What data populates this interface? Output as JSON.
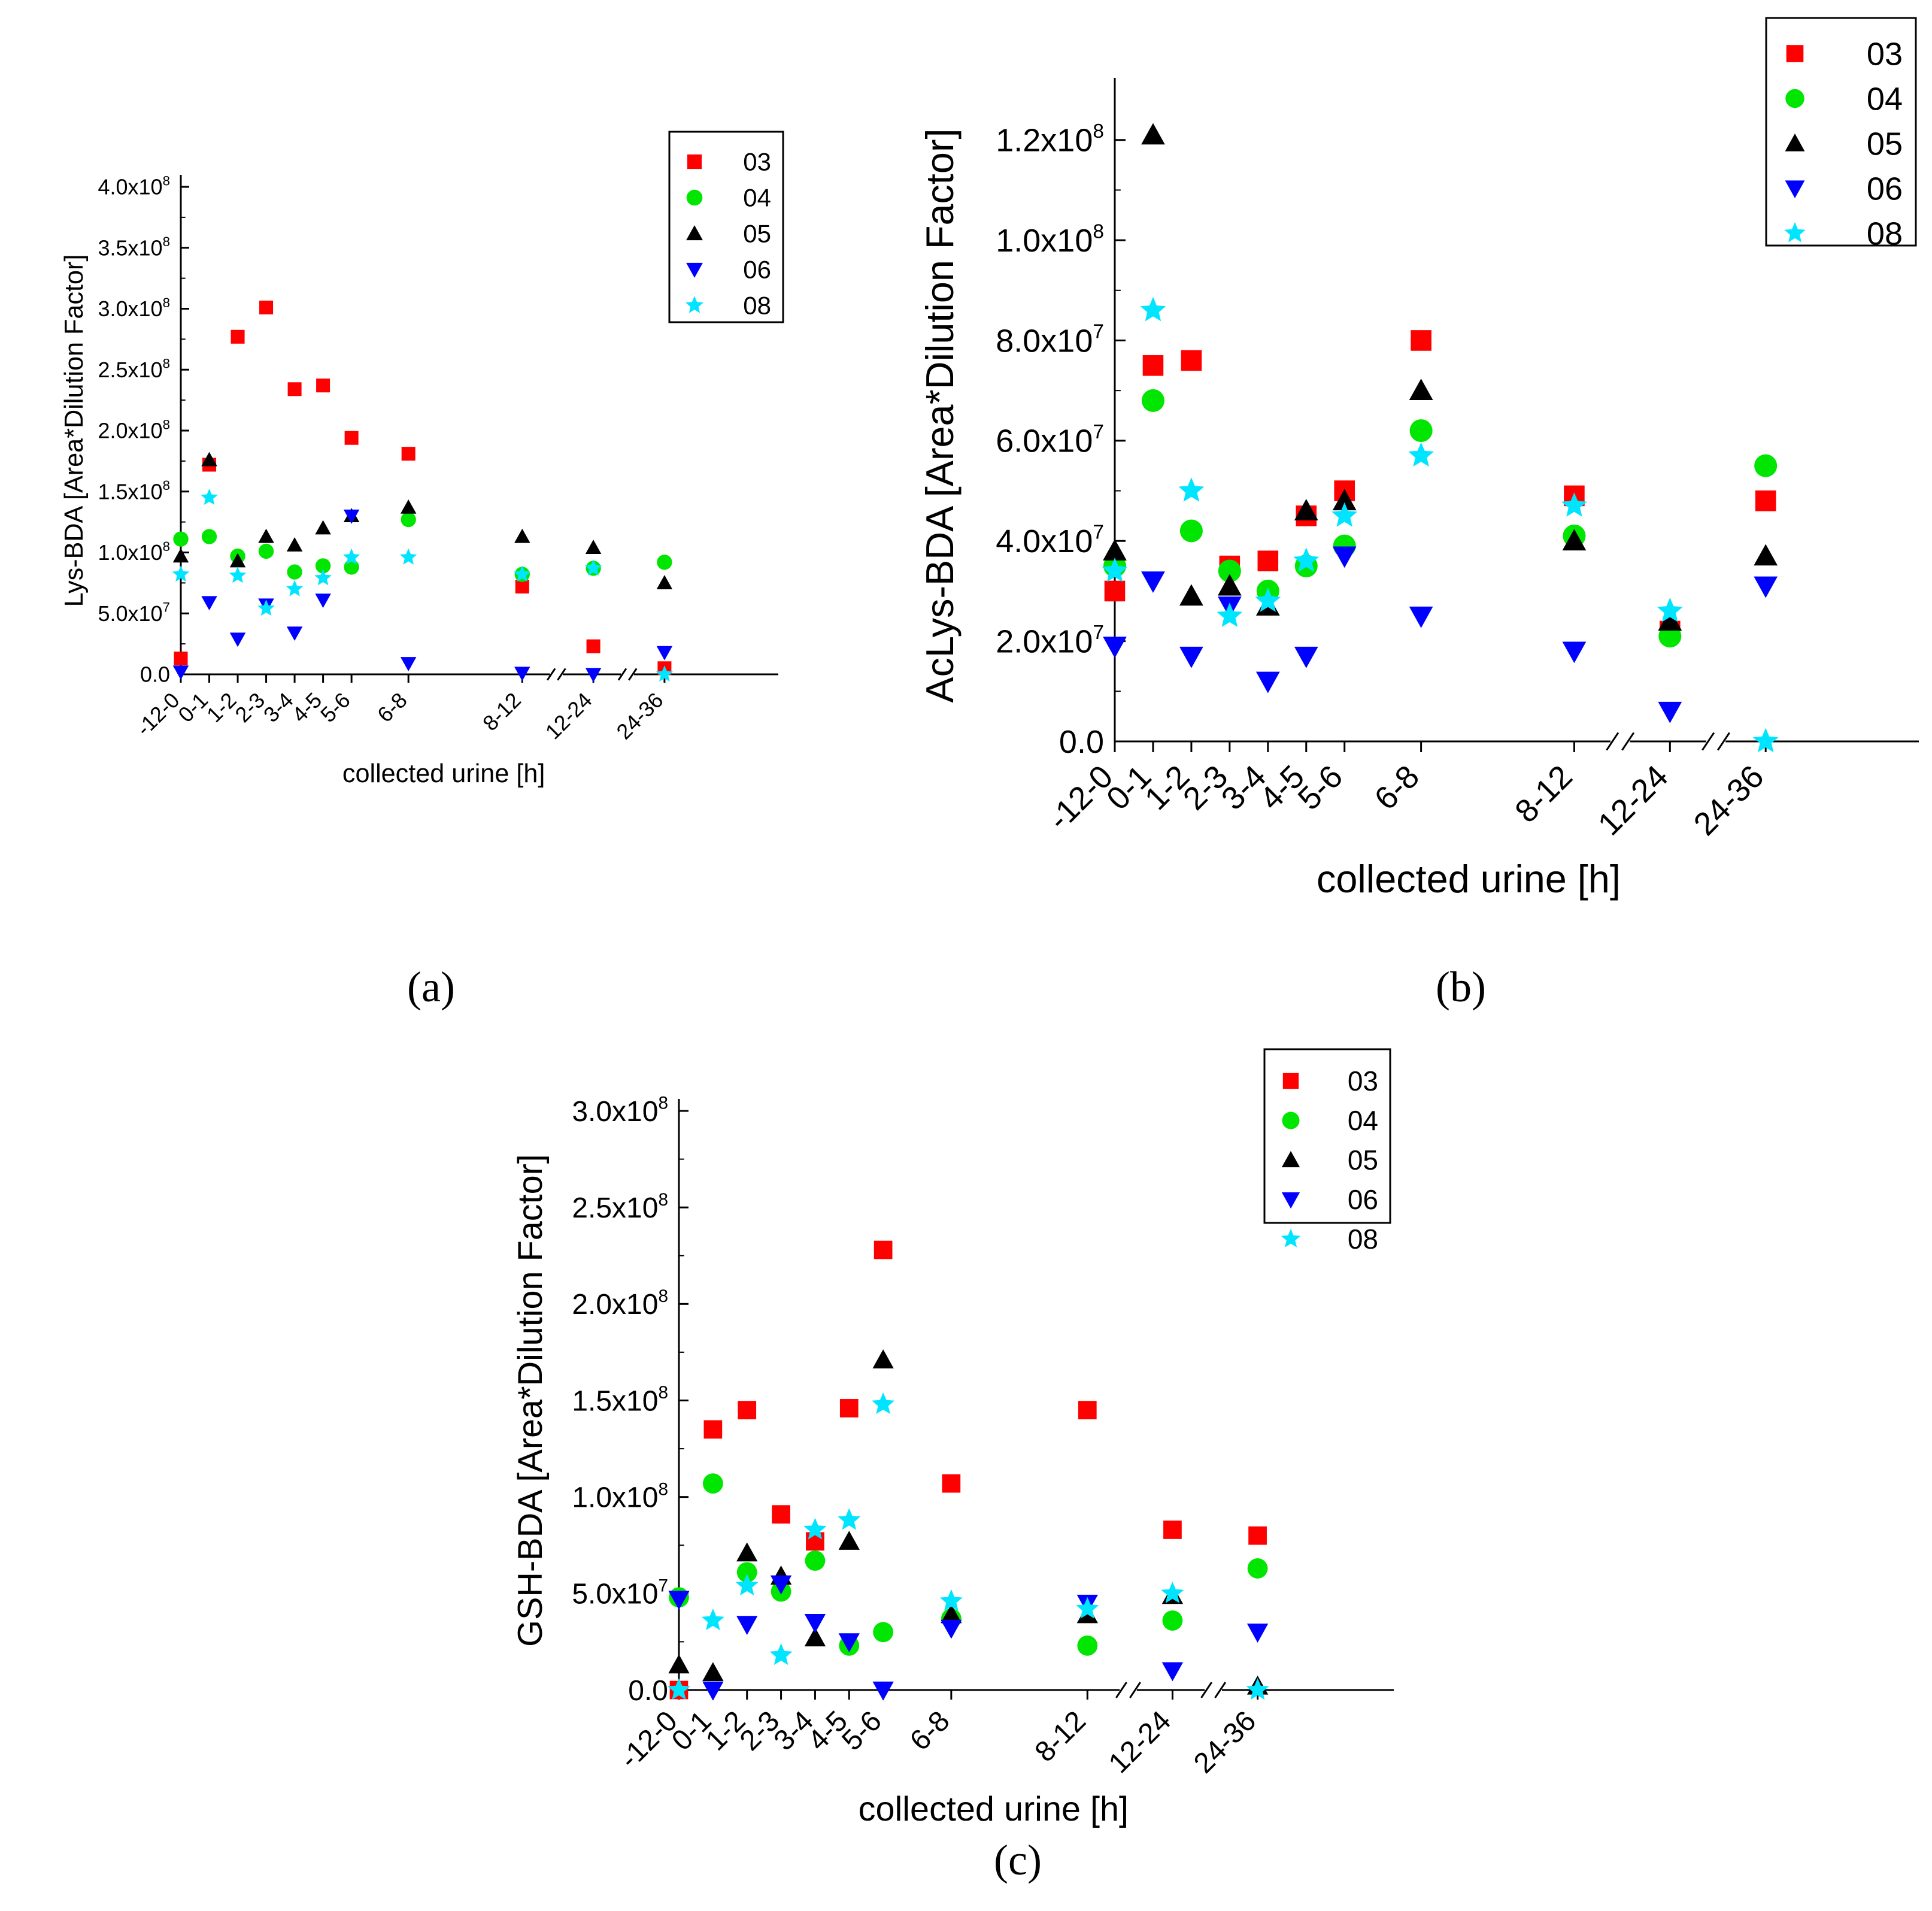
{
  "figure": {
    "panel_labels": [
      "(a)",
      "(b)",
      "(c)"
    ]
  },
  "series_style": [
    {
      "name": "03",
      "color": "#ff0000",
      "marker": "square"
    },
    {
      "name": "04",
      "color": "#00e600",
      "marker": "circle"
    },
    {
      "name": "05",
      "color": "#000000",
      "marker": "triangle-up"
    },
    {
      "name": "06",
      "color": "#0000ff",
      "marker": "triangle-down"
    },
    {
      "name": "08",
      "color": "#00e5ff",
      "marker": "star"
    }
  ],
  "chart_data": [
    {
      "id": "a",
      "type": "scatter",
      "panel_label": "(a)",
      "xlabel": "collected urine [h]",
      "ylabel": "Lys-BDA [Area*Dilution Factor]",
      "categories": [
        "-12-0",
        "0-1",
        "1-2",
        "2-3",
        "3-4",
        "4-5",
        "5-6",
        "6-8",
        "8-12",
        "12-24",
        "24-36"
      ],
      "x_positions": [
        0,
        1,
        2,
        3,
        4,
        5,
        6,
        8,
        12,
        14.5,
        17
      ],
      "xlim": [
        0,
        21
      ],
      "breaks": [
        13.2,
        15.7
      ],
      "ylim": [
        0,
        400000000
      ],
      "yticks": [
        0,
        50000000,
        100000000,
        150000000,
        200000000,
        250000000,
        300000000,
        350000000,
        400000000
      ],
      "ytick_labels": [
        {
          "mant": "0.0",
          "exp": ""
        },
        {
          "mant": "5.0x10",
          "exp": "7"
        },
        {
          "mant": "1.0x10",
          "exp": "8"
        },
        {
          "mant": "1.5x10",
          "exp": "8"
        },
        {
          "mant": "2.0x10",
          "exp": "8"
        },
        {
          "mant": "2.5x10",
          "exp": "8"
        },
        {
          "mant": "3.0x10",
          "exp": "8"
        },
        {
          "mant": "3.5x10",
          "exp": "8"
        },
        {
          "mant": "4.0x10",
          "exp": "8"
        }
      ],
      "legend": [
        "03",
        "04",
        "05",
        "06",
        "08"
      ],
      "series": [
        {
          "name": "03",
          "values": [
            13000000,
            172000000,
            277000000,
            301000000,
            234000000,
            237000000,
            194000000,
            181000000,
            72000000,
            23000000,
            5000000
          ]
        },
        {
          "name": "04",
          "values": [
            111000000,
            113000000,
            97000000,
            101000000,
            84000000,
            89000000,
            88000000,
            127000000,
            82000000,
            87000000,
            92000000
          ]
        },
        {
          "name": "05",
          "values": [
            97000000,
            176000000,
            93000000,
            113000000,
            106000000,
            120000000,
            130000000,
            137000000,
            113000000,
            104000000,
            75000000
          ]
        },
        {
          "name": "06",
          "values": [
            2000000,
            59000000,
            29000000,
            57000000,
            34000000,
            61000000,
            130000000,
            9000000,
            1000000,
            0,
            18000000
          ]
        },
        {
          "name": "08",
          "values": [
            82000000,
            145000000,
            81000000,
            54000000,
            70000000,
            79000000,
            96000000,
            96000000,
            82000000,
            87000000,
            0
          ]
        }
      ]
    },
    {
      "id": "b",
      "type": "scatter",
      "panel_label": "(b)",
      "xlabel": "collected urine [h]",
      "ylabel": "AcLys-BDA [Area*Dilution Factor]",
      "categories": [
        "-12-0",
        "0-1",
        "1-2",
        "2-3",
        "3-4",
        "4-5",
        "5-6",
        "6-8",
        "8-12",
        "12-24",
        "24-36"
      ],
      "x_positions": [
        0,
        1,
        2,
        3,
        4,
        5,
        6,
        8,
        12,
        14.5,
        17
      ],
      "xlim": [
        0,
        21
      ],
      "breaks": [
        13.2,
        15.7
      ],
      "ylim": [
        0,
        130000000
      ],
      "yticks": [
        0,
        20000000,
        40000000,
        60000000,
        80000000,
        100000000,
        120000000
      ],
      "ytick_labels": [
        {
          "mant": "0.0",
          "exp": ""
        },
        {
          "mant": "2.0x10",
          "exp": "7"
        },
        {
          "mant": "4.0x10",
          "exp": "7"
        },
        {
          "mant": "6.0x10",
          "exp": "7"
        },
        {
          "mant": "8.0x10",
          "exp": "7"
        },
        {
          "mant": "1.0x10",
          "exp": "8"
        },
        {
          "mant": "1.2x10",
          "exp": "8"
        }
      ],
      "legend": [
        "03",
        "04",
        "05",
        "06",
        "08"
      ],
      "series": [
        {
          "name": "03",
          "values": [
            30000000,
            75000000,
            76000000,
            35000000,
            36000000,
            45000000,
            50000000,
            80000000,
            49000000,
            22000000,
            48000000
          ]
        },
        {
          "name": "04",
          "values": [
            35000000,
            68000000,
            42000000,
            34000000,
            30000000,
            35000000,
            39000000,
            62000000,
            41000000,
            21000000,
            55000000
          ]
        },
        {
          "name": "05",
          "values": [
            38000000,
            121000000,
            29000000,
            31000000,
            27000000,
            46000000,
            48000000,
            70000000,
            40000000,
            24000000,
            37000000
          ]
        },
        {
          "name": "06",
          "values": [
            19000000,
            32000000,
            17000000,
            27000000,
            12000000,
            17000000,
            37000000,
            25000000,
            18000000,
            6000000,
            31000000
          ]
        },
        {
          "name": "08",
          "values": [
            34000000,
            86000000,
            50000000,
            25000000,
            28000000,
            36000000,
            45000000,
            57000000,
            47000000,
            26000000,
            0
          ]
        }
      ]
    },
    {
      "id": "c",
      "type": "scatter",
      "panel_label": "(c)",
      "xlabel": "collected urine [h]",
      "ylabel": "GSH-BDA [Area*Dilution Factor]",
      "categories": [
        "-12-0",
        "0-1",
        "1-2",
        "2-3",
        "3-4",
        "4-5",
        "5-6",
        "6-8",
        "8-12",
        "12-24",
        "24-36"
      ],
      "x_positions": [
        0,
        1,
        2,
        3,
        4,
        5,
        6,
        8,
        12,
        14.5,
        17
      ],
      "xlim": [
        0,
        21
      ],
      "breaks": [
        13.2,
        15.7
      ],
      "ylim": [
        0,
        300000000
      ],
      "yticks": [
        0,
        50000000,
        100000000,
        150000000,
        200000000,
        250000000,
        300000000
      ],
      "ytick_labels": [
        {
          "mant": "0.0",
          "exp": ""
        },
        {
          "mant": "5.0x10",
          "exp": "7"
        },
        {
          "mant": "1.0x10",
          "exp": "8"
        },
        {
          "mant": "1.5x10",
          "exp": "8"
        },
        {
          "mant": "2.0x10",
          "exp": "8"
        },
        {
          "mant": "2.5x10",
          "exp": "8"
        },
        {
          "mant": "3.0x10",
          "exp": "8"
        }
      ],
      "legend": [
        "03",
        "04",
        "05",
        "06",
        "08"
      ],
      "series": [
        {
          "name": "03",
          "values": [
            0,
            135000000,
            145000000,
            91000000,
            77000000,
            146000000,
            228000000,
            107000000,
            145000000,
            83000000,
            80000000
          ]
        },
        {
          "name": "04",
          "values": [
            48000000,
            107000000,
            61000000,
            51000000,
            67000000,
            23000000,
            30000000,
            37000000,
            23000000,
            36000000,
            63000000
          ]
        },
        {
          "name": "05",
          "values": [
            13000000,
            9000000,
            71000000,
            59000000,
            27000000,
            77000000,
            171000000,
            39000000,
            39000000,
            49000000,
            2000000
          ]
        },
        {
          "name": "06",
          "values": [
            47000000,
            0,
            34000000,
            55000000,
            35000000,
            25000000,
            0,
            32000000,
            45000000,
            10000000,
            30000000
          ]
        },
        {
          "name": "08",
          "values": [
            0,
            36000000,
            54000000,
            18000000,
            83000000,
            88000000,
            148000000,
            46000000,
            42000000,
            50000000,
            0
          ]
        }
      ]
    }
  ]
}
